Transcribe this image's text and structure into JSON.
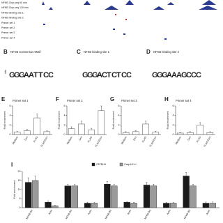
{
  "browser": {
    "tracks": [
      "NFKB Chip-seq 60 min",
      "NFKB Chip-seq 120 min",
      "NFKB binding site 1",
      "NFKB binding site 2",
      "Primer set 1",
      "Primer set 2",
      "Primer set 3",
      "Primer set 4"
    ]
  },
  "motifs": [
    {
      "panel": "B",
      "title": "NFKB Consensus Motif",
      "letters": [
        "G",
        "G",
        "G",
        "A",
        "A",
        "T",
        "T",
        "C",
        "C"
      ],
      "ylabel": "bits"
    },
    {
      "panel": "C",
      "title": "NFKB binding site 1",
      "letters": [
        "G",
        "G",
        "G",
        "A",
        "C",
        "T",
        "C",
        "T",
        "C",
        "C"
      ]
    },
    {
      "panel": "D",
      "title": "NFKB binding site 2",
      "letters": [
        "G",
        "G",
        "G",
        "A",
        "A",
        "A",
        "G",
        "C",
        "C",
        "C"
      ]
    }
  ],
  "chart_data": [
    {
      "type": "bar",
      "panel": "E",
      "title": "Primer set 1",
      "ylabel": "Fold enrichment",
      "categories": [
        "Medium",
        "Dex",
        "FLAG",
        "FLAG/Dex"
      ],
      "series": [
        {
          "color": "#ffffff",
          "values": [
            0.5,
            0.8,
            3.5,
            0.6
          ],
          "errors": [
            0.2,
            0.3,
            0.8,
            0.2
          ]
        }
      ],
      "ylim": [
        0,
        6
      ],
      "yticks": [
        0,
        2,
        4,
        6
      ]
    },
    {
      "type": "bar",
      "panel": "F",
      "title": "Primer set 2",
      "ylabel": "Fold enrichment",
      "categories": [
        "Medium",
        "Dex",
        "FLAG",
        "FLAG/Dex"
      ],
      "series": [
        {
          "color": "#ffffff",
          "values": [
            1.2,
            2.2,
            1.0,
            5.0
          ],
          "errors": [
            0.4,
            0.6,
            0.3,
            1.0
          ]
        }
      ],
      "ylim": [
        0,
        6
      ],
      "yticks": [
        0,
        2,
        4,
        6
      ]
    },
    {
      "type": "bar",
      "panel": "G",
      "title": "Primer set 3",
      "ylabel": "Fold enrichment",
      "categories": [
        "Medium",
        "Dex",
        "FLAG",
        "FLAG/Dex"
      ],
      "series": [
        {
          "color": "#ffffff",
          "values": [
            0.4,
            0.6,
            2.2,
            0.5
          ],
          "errors": [
            0.2,
            0.2,
            0.6,
            0.2
          ]
        }
      ],
      "ylim": [
        0,
        6
      ],
      "yticks": [
        0,
        2,
        4,
        6
      ]
    },
    {
      "type": "bar",
      "panel": "H",
      "title": "Primer set 4",
      "ylabel": "Fold enrichment",
      "categories": [
        "Medium",
        "Dex",
        "FLAG",
        "FLAG/Dex"
      ],
      "series": [
        {
          "color": "#ffffff",
          "values": [
            0.3,
            0.4,
            2.0,
            0.4
          ],
          "errors": [
            0.1,
            0.2,
            0.5,
            0.2
          ]
        }
      ],
      "ylim": [
        0,
        6
      ],
      "yticks": [
        0,
        2,
        4,
        6
      ]
    },
    {
      "type": "bar",
      "panel": "I",
      "ylabel": "Fold enrichment",
      "legend": "top",
      "categories": [
        "NFKB BS",
        "Actin",
        "NFKB BS",
        "Actin",
        "NFKB BS",
        "Actin",
        "NFKB BS",
        "Actin",
        "NFKB BS",
        "Actin"
      ],
      "series": [
        {
          "name": "C57BL/6",
          "color": "#1a1a1a",
          "values": [
            14,
            3,
            12,
            2.5,
            13,
            3,
            12.5,
            2.5,
            17.5,
            2.5
          ],
          "errors": [
            2.5,
            0.8,
            1.0,
            0.5,
            1.5,
            0.4,
            1.5,
            0.4,
            2.0,
            0.6
          ]
        },
        {
          "name": "Casp1/11-/-",
          "color": "#9a9a9a",
          "values": [
            15,
            1,
            12,
            2.5,
            12,
            2.5,
            12,
            2.5,
            12,
            2.5
          ],
          "errors": [
            2.5,
            0.3,
            1.0,
            0.4,
            1.0,
            0.4,
            1.0,
            0.4,
            1.0,
            0.6
          ]
        }
      ],
      "ylim": [
        0,
        20
      ],
      "yticks": [
        0,
        5,
        10,
        15,
        20
      ]
    }
  ]
}
